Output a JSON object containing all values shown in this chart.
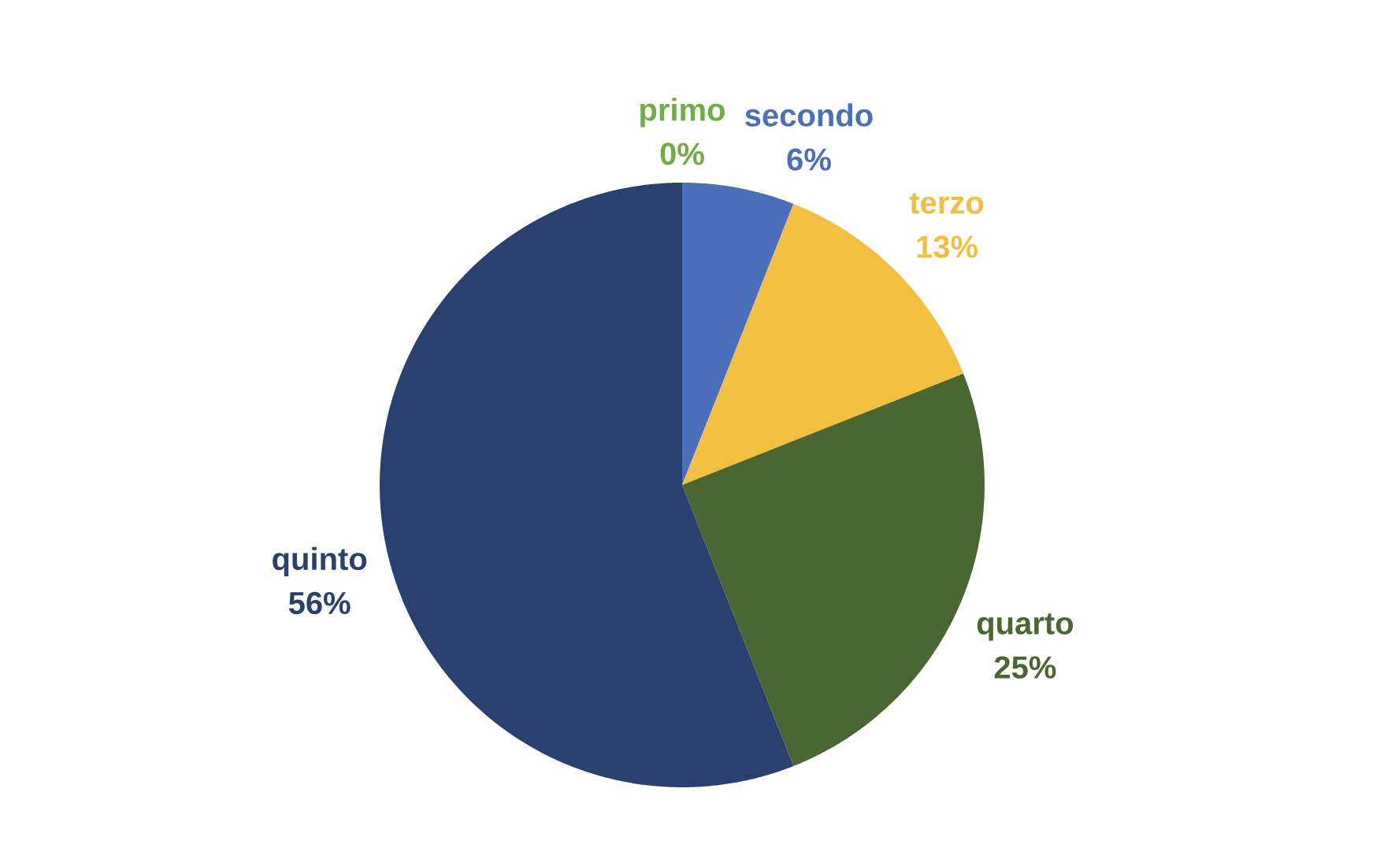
{
  "chart_data": {
    "type": "pie",
    "categories": [
      "primo",
      "secondo",
      "terzo",
      "quarto",
      "quinto"
    ],
    "values": [
      0,
      6,
      13,
      25,
      56
    ],
    "value_labels": [
      "0%",
      "6%",
      "13%",
      "25%",
      "56%"
    ],
    "colors": [
      "#70ad47",
      "#4a6fbb",
      "#f2bf3f",
      "#4a6632",
      "#2a416f"
    ]
  }
}
